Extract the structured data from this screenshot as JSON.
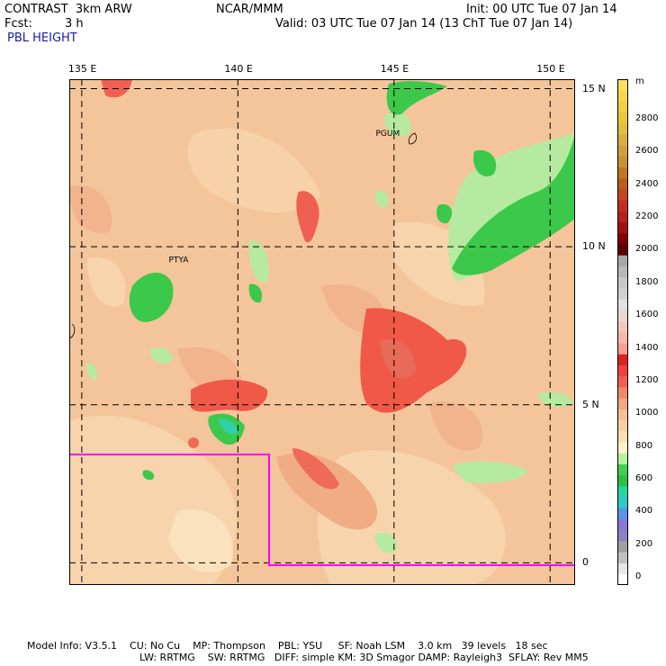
{
  "header": {
    "model": "CONTRAST  3km ARW",
    "org": "NCAR/MMM",
    "init": "Init: 00 UTC Tue 07 Jan 14",
    "fcst_label": "Fcst:",
    "fcst_value": "3 h",
    "valid": "Valid: 03 UTC Tue 07 Jan 14 (13 ChT Tue 07 Jan 14)",
    "field": "PBL HEIGHT"
  },
  "map": {
    "lon_labels": [
      "135 E",
      "140 E",
      "145 E",
      "150 E"
    ],
    "lat_labels": [
      "15 N",
      "10 N",
      "5 N",
      "0"
    ],
    "lon_ticks": [
      135,
      140,
      145,
      150
    ],
    "lat_ticks": [
      15,
      10,
      5,
      0
    ],
    "lon_range": [
      134.6,
      150.8
    ],
    "lat_range": [
      -0.7,
      15.3
    ],
    "places": [
      {
        "label": "PGUM",
        "lon": 144.8,
        "lat": 13.5
      },
      {
        "label": "PTYA",
        "lon": 138.1,
        "lat": 9.5
      }
    ],
    "domain_boundary_color": "#ff00ff",
    "grid": true
  },
  "colorbar": {
    "unit": "m",
    "labels": [
      "2800",
      "2600",
      "2400",
      "2200",
      "2000",
      "1800",
      "1600",
      "1400",
      "1200",
      "1000",
      "800",
      "600",
      "400",
      "200",
      "0"
    ],
    "colors": [
      "#ffffff",
      "#e6e6e6",
      "#c0c0c0",
      "#a0a0a0",
      "#9080c0",
      "#8878d8",
      "#6090e8",
      "#30c8c8",
      "#20d8a0",
      "#30c040",
      "#40d050",
      "#b8f0a0",
      "#fff2cc",
      "#fbe0b0",
      "#f8d0a0",
      "#f4c098",
      "#f0a880",
      "#f08868",
      "#f06050",
      "#f04040",
      "#e02020",
      "#f8a090",
      "#f8b8a8",
      "#f0c8c0",
      "#e8d8d0",
      "#e0e0e0",
      "#d0d0d0",
      "#c8c8c8",
      "#b8b8b8",
      "#a8a8a8",
      "#5a0000",
      "#800000",
      "#a01010",
      "#b82020",
      "#c03020",
      "#c04818",
      "#b86018",
      "#c07820",
      "#c89030",
      "#d0a040",
      "#d8b040",
      "#e0c040",
      "#e8c838",
      "#f0d040",
      "#f8d848",
      "#fde060"
    ]
  },
  "footer": {
    "line1": "Model Info: V3.5.1    CU: No Cu    MP: Thompson    PBL: YSU     SF: Noah LSM    3.0 km   39 levels   18 sec",
    "line2": "LW: RRTMG    SW: RRTMG   DIFF: simple KM: 3D Smagor DAMP: Rayleigh3  SFLAY: Rev MM5"
  }
}
